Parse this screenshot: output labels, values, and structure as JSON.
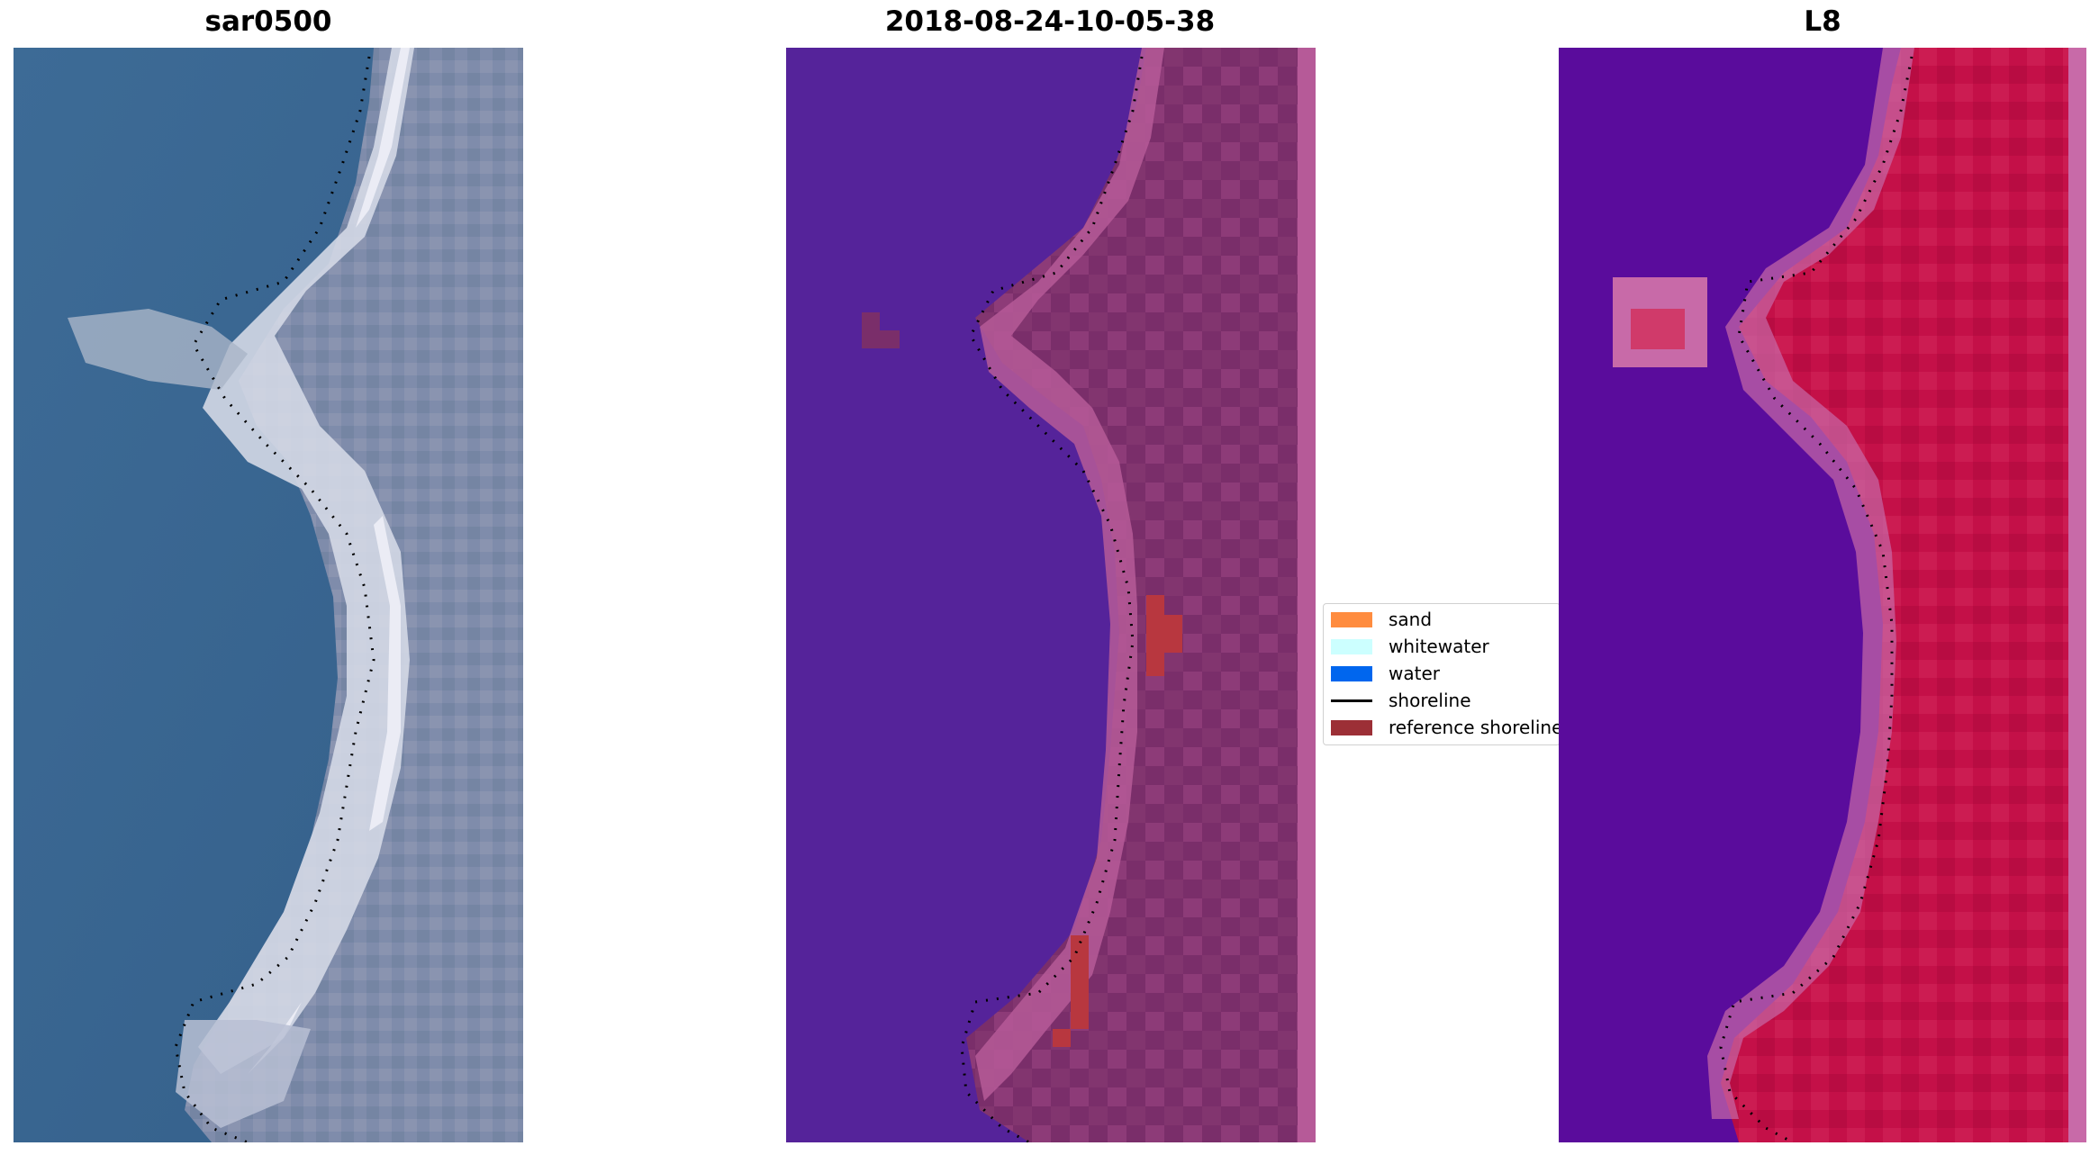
{
  "panels": [
    {
      "title": "sar0500"
    },
    {
      "title": "2018-08-24-10-05-38"
    },
    {
      "title": "L8"
    }
  ],
  "legend": {
    "items": [
      {
        "label": "sand",
        "color": "#ff8c3f"
      },
      {
        "label": "whitewater",
        "color": "#ccffff"
      },
      {
        "label": "water",
        "color": "#0066ee"
      },
      {
        "label": "shoreline",
        "color": "#000000"
      },
      {
        "label": "reference shoreline",
        "color": "#9c2f36"
      }
    ]
  },
  "colors": {
    "rgb_water": "#3a6691",
    "rgb_land": "#7b8aa8",
    "rgb_beach": "#e6e8f2",
    "class_water": "#55239a",
    "class_land": "#7a2e6a",
    "class_beach": "#b65a98",
    "class_ref": "#b8373f",
    "mndwi_water": "#5a0c9c",
    "mndwi_land": "#c01048",
    "mndwi_edge": "#c86aa8"
  }
}
